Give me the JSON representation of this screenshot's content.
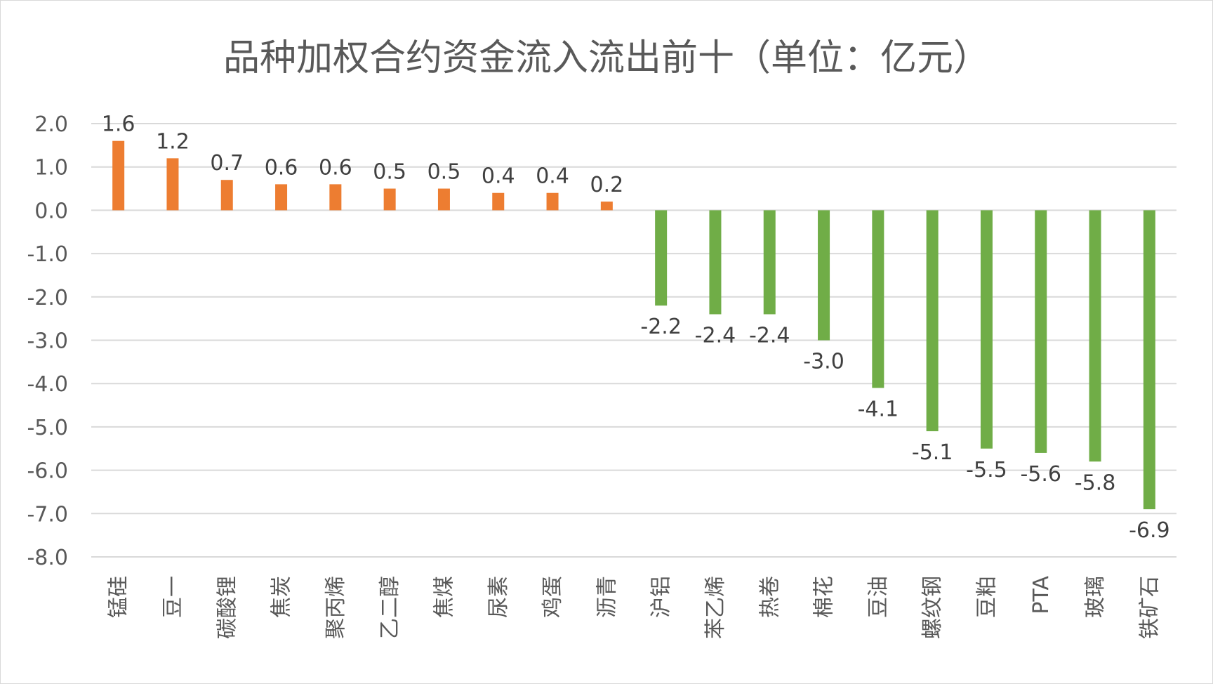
{
  "chart_data": {
    "type": "bar",
    "title": "品种加权合约资金流入流出前十（单位：亿元）",
    "ylim": [
      -8,
      2
    ],
    "yticks": [
      "2.0",
      "1.0",
      "0.0",
      "-1.0",
      "-2.0",
      "-3.0",
      "-4.0",
      "-5.0",
      "-6.0",
      "-7.0",
      "-8.0"
    ],
    "grid": true,
    "colors": {
      "positive": "#ed7d31",
      "negative": "#70ad47"
    },
    "categories": [
      "锰硅",
      "豆一",
      "碳酸锂",
      "焦炭",
      "聚丙烯",
      "乙二醇",
      "焦煤",
      "尿素",
      "鸡蛋",
      "沥青",
      "沪铝",
      "苯乙烯",
      "热卷",
      "棉花",
      "豆油",
      "螺纹钢",
      "豆粕",
      "PTA",
      "玻璃",
      "铁矿石"
    ],
    "values": [
      1.6,
      1.2,
      0.7,
      0.6,
      0.6,
      0.5,
      0.5,
      0.4,
      0.4,
      0.2,
      -2.2,
      -2.4,
      -2.4,
      -3.0,
      -4.1,
      -5.1,
      -5.5,
      -5.6,
      -5.8,
      -6.9
    ],
    "data_labels": [
      "1.6",
      "1.2",
      "0.7",
      "0.6",
      "0.6",
      "0.5",
      "0.5",
      "0.4",
      "0.4",
      "0.2",
      "-2.2",
      "-2.4",
      "-2.4",
      "-3.0",
      "-4.1",
      "-5.1",
      "-5.5",
      "-5.6",
      "-5.8",
      "-6.9"
    ]
  }
}
